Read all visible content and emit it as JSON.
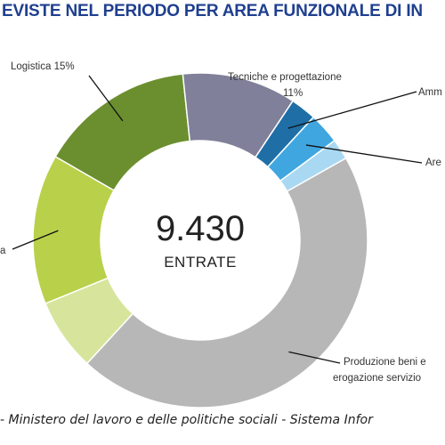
{
  "title": "EVISTE NEL PERIODO PER AREA FUNZIONALE DI IN",
  "footer": "- Ministero del lavoro e delle politiche sociali - Sistema Infor",
  "chart_data": {
    "type": "pie",
    "center_value": "9.430",
    "center_label": "ENTRATE",
    "slices": [
      {
        "label_lines": [
          "Logistica 15%"
        ],
        "value": 15,
        "color": "#6b8f2f"
      },
      {
        "label_lines": [
          "Tecniche e progettazione",
          "11%"
        ],
        "value": 11,
        "color": "#80809a"
      },
      {
        "label_lines": [
          "Amm"
        ],
        "value": 2.5,
        "color": "#1f6fa6"
      },
      {
        "label_lines": [
          "Are"
        ],
        "value": 3,
        "color": "#3fa6e0"
      },
      {
        "label_lines": [],
        "value": 2,
        "color": "#a9d8f2"
      },
      {
        "label_lines": [
          "Produzione beni e",
          "erogazione servizio"
        ],
        "value": 45,
        "color": "#b7b7b7"
      },
      {
        "label_lines": [],
        "value": 7,
        "color": "#d7e59c"
      },
      {
        "label_lines": [
          "a"
        ],
        "value": 14.5,
        "color": "#b9d04a"
      }
    ]
  }
}
